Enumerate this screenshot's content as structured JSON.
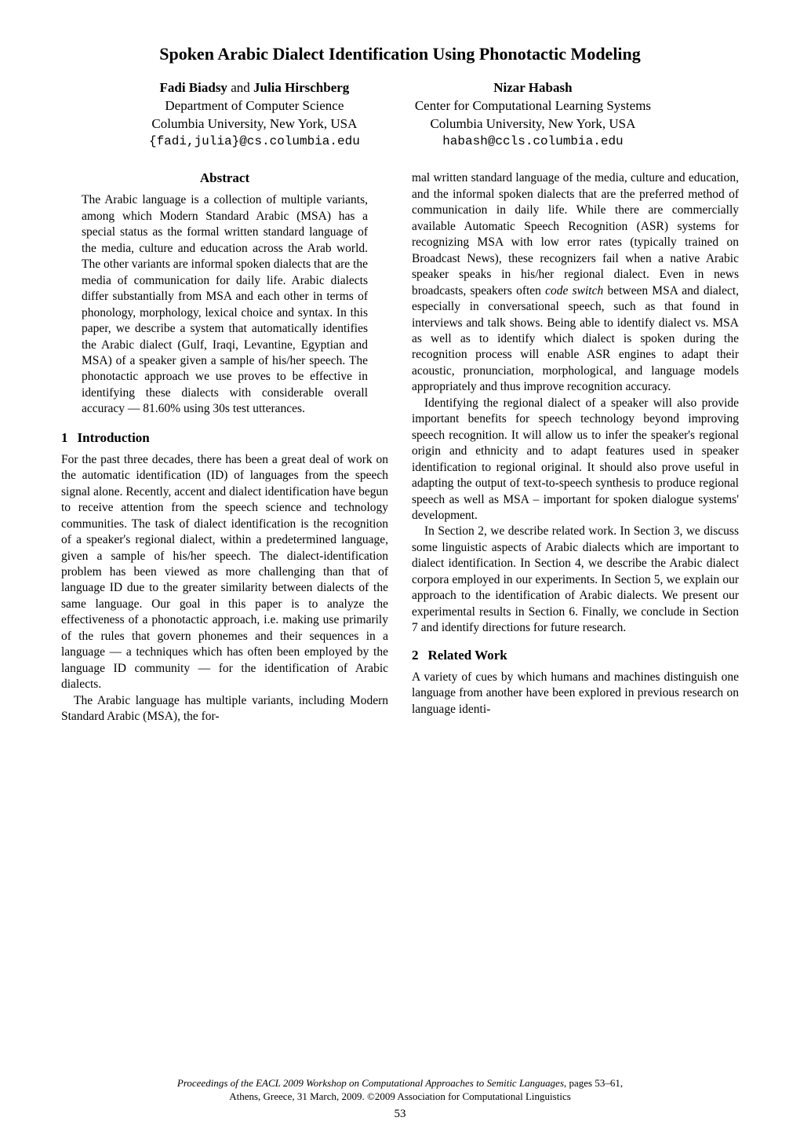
{
  "title": "Spoken Arabic Dialect Identification Using Phonotactic Modeling",
  "authors": {
    "left": {
      "names_html": "Fadi Biadsy <span class=\"and\">and</span> Julia Hirschberg",
      "affil1": "Department of Computer Science",
      "affil2": "Columbia University, New York, USA",
      "email": "{fadi,julia}@cs.columbia.edu"
    },
    "right": {
      "names_html": "Nizar Habash",
      "affil1": "Center for Computational Learning Systems",
      "affil2": "Columbia University, New York, USA",
      "email": "habash@ccls.columbia.edu"
    }
  },
  "abstract": {
    "heading": "Abstract",
    "body": "The Arabic language is a collection of multiple variants, among which Modern Standard Arabic (MSA) has a special status as the formal written standard language of the media, culture and education across the Arab world. The other variants are informal spoken dialects that are the media of communication for daily life. Arabic dialects differ substantially from MSA and each other in terms of phonology, morphology, lexical choice and syntax. In this paper, we describe a system that automatically identifies the Arabic dialect (Gulf, Iraqi, Levantine, Egyptian and MSA) of a speaker given a sample of his/her speech. The phonotactic approach we use proves to be effective in identifying these dialects with considerable overall accuracy — 81.60% using 30s test utterances."
  },
  "sections": {
    "s1": {
      "num": "1",
      "title": "Introduction",
      "p1": "For the past three decades, there has been a great deal of work on the automatic identification (ID) of languages from the speech signal alone. Recently, accent and dialect identification have begun to receive attention from the speech science and technology communities. The task of dialect identification is the recognition of a speaker's regional dialect, within a predetermined language, given a sample of his/her speech. The dialect-identification problem has been viewed as more challenging than that of language ID due to the greater similarity between dialects of the same language. Our goal in this paper is to analyze the effectiveness of a phonotactic approach, i.e. making use primarily of the rules that govern phonemes and their sequences in a language — a techniques which has often been employed by the language ID community — for the identification of Arabic dialects.",
      "p2": "The Arabic language has multiple variants, including Modern Standard Arabic (MSA), the for-"
    },
    "right_col": {
      "p1": "mal written standard language of the media, culture and education, and the informal spoken dialects that are the preferred method of communication in daily life. While there are commercially available Automatic Speech Recognition (ASR) systems for recognizing MSA with low error rates (typically trained on Broadcast News), these recognizers fail when a native Arabic speaker speaks in his/her regional dialect. Even in news broadcasts, speakers often ",
      "p1_italic": "code switch",
      "p1_tail": " between MSA and dialect, especially in conversational speech, such as that found in interviews and talk shows. Being able to identify dialect vs. MSA as well as to identify which dialect is spoken during the recognition process will enable ASR engines to adapt their acoustic, pronunciation, morphological, and language models appropriately and thus improve recognition accuracy.",
      "p2": "Identifying the regional dialect of a speaker will also provide important benefits for speech technology beyond improving speech recognition. It will allow us to infer the speaker's regional origin and ethnicity and to adapt features used in speaker identification to regional original. It should also prove useful in adapting the output of text-to-speech synthesis to produce regional speech as well as MSA – important for spoken dialogue systems' development.",
      "p3": "In Section 2, we describe related work. In Section 3, we discuss some linguistic aspects of Arabic dialects which are important to dialect identification. In Section 4, we describe the Arabic dialect corpora employed in our experiments. In Section 5, we explain our approach to the identification of Arabic dialects. We present our experimental results in Section 6. Finally, we conclude in Section 7 and identify directions for future research."
    },
    "s2": {
      "num": "2",
      "title": "Related Work",
      "p1": "A variety of cues by which humans and machines distinguish one language from another have been explored in previous research on language identi-"
    }
  },
  "footer": {
    "line1": "Proceedings of the EACL 2009 Workshop on Computational Approaches to Semitic Languages",
    "line1_tail": ", pages 53–61,",
    "line2": "Athens, Greece, 31 March, 2009. ©2009 Association for Computational Linguistics"
  },
  "page_number": "53"
}
